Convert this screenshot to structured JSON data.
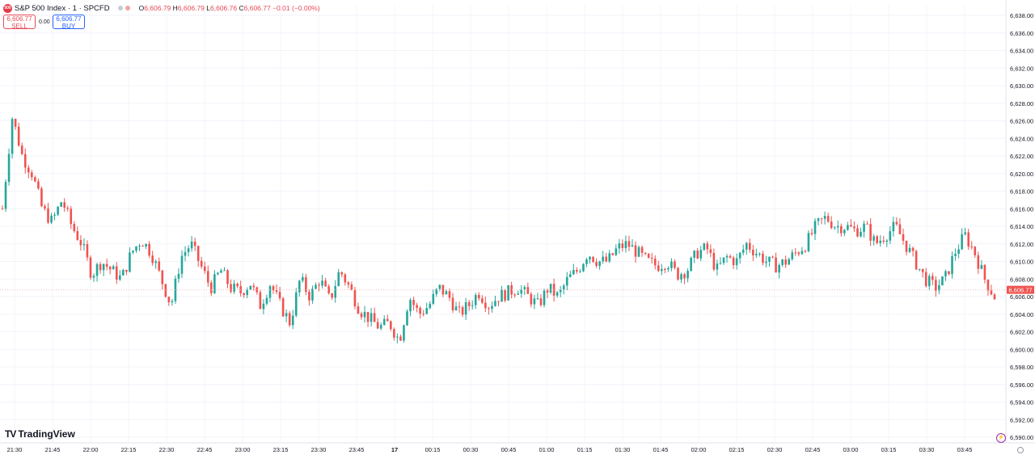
{
  "header": {
    "symbol_badge": "500",
    "title": "S&P 500 Index · 1 · SPCFD",
    "ohlc": {
      "o_label": "O",
      "o": "6,606.79",
      "h_label": "H",
      "h": "6,606.79",
      "l_label": "L",
      "l": "6,606.76",
      "c_label": "C",
      "c": "6,606.77",
      "change": "−0.01 (−0.00%)"
    }
  },
  "trade": {
    "sell_price": "6,606.77",
    "sell_label": "SELL",
    "spread": "0.00",
    "buy_price": "6,606.77",
    "buy_label": "BUY"
  },
  "branding": {
    "logo_mark": "TV",
    "logo_text": "TradingView"
  },
  "icons": [
    "flash-icon",
    "settings-icon"
  ],
  "colors": {
    "up": "#26a69a",
    "down": "#ef5350",
    "price_line": "#f7b9bd",
    "price_tag": "#ef5350"
  },
  "chart_data": {
    "type": "candlestick",
    "interval": "1 minute",
    "current_price": 6606.77,
    "current_price_label": "6,606.77",
    "ylim": [
      6590,
      6639
    ],
    "y_ticks": [
      6638,
      6636,
      6634,
      6632,
      6630,
      6628,
      6626,
      6624,
      6622,
      6620,
      6618,
      6616,
      6614,
      6612,
      6610,
      6608,
      6606,
      6604,
      6602,
      6600,
      6598,
      6596,
      6594,
      6592,
      6590
    ],
    "y_tick_labels": [
      "6,638.00",
      "6,636.00",
      "6,634.00",
      "6,632.00",
      "6,630.00",
      "6,628.00",
      "6,626.00",
      "6,624.00",
      "6,622.00",
      "6,620.00",
      "6,618.00",
      "6,616.00",
      "6,614.00",
      "6,612.00",
      "6,610.00",
      "6,608.00",
      "6,606.00",
      "6,604.00",
      "6,602.00",
      "6,600.00",
      "6,598.00",
      "6,596.00",
      "6,594.00",
      "6,592.00",
      "6,590.00"
    ],
    "x_ticks": [
      "21:30",
      "21:45",
      "22:00",
      "22:15",
      "22:30",
      "22:45",
      "23:00",
      "23:15",
      "23:30",
      "23:45",
      "17",
      "00:15",
      "00:30",
      "00:45",
      "01:00",
      "01:15",
      "01:30",
      "01:45",
      "02:00",
      "02:15",
      "02:30",
      "02:45",
      "03:00",
      "03:15",
      "03:30",
      "03:45"
    ],
    "closes": [
      6616,
      6626.5,
      6622,
      6620,
      6616,
      6614.5,
      6617,
      6614,
      6612,
      6608.5,
      6610,
      6609,
      6608,
      6611,
      6612.5,
      6611,
      6608,
      6605,
      6610.5,
      6612,
      6609.5,
      6607,
      6609,
      6607,
      6606.5,
      6607.5,
      6605,
      6607.5,
      6605,
      6603,
      6608,
      6606,
      6608,
      6605.5,
      6609,
      6607,
      6604.5,
      6603.5,
      6602.5,
      6603,
      6601,
      6606,
      6604,
      6605,
      6607,
      6606,
      6604,
      6605,
      6606.5,
      6605,
      6606,
      6606.5,
      6607,
      6606,
      6605,
      6607,
      6606,
      6608,
      6609,
      6611,
      6610,
      6610,
      6611.5,
      6612,
      6611,
      6610,
      6609.5,
      6610,
      6608.5,
      6609,
      6611,
      6611.5,
      6609,
      6610.5,
      6610,
      6612,
      6611,
      6610,
      6609.5,
      6610,
      6611,
      6612,
      6614,
      6615,
      6614,
      6614,
      6613.5,
      6614,
      6612,
      6613,
      6614,
      6612,
      6610,
      6608,
      6607,
      6608,
      6611,
      6613,
      6611,
      6608,
      6606
    ]
  }
}
